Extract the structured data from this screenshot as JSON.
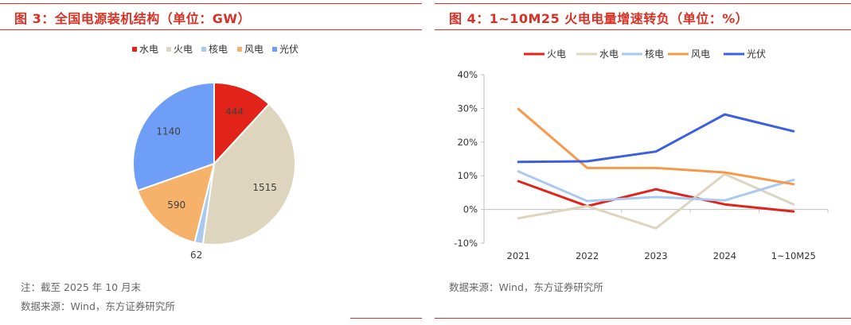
{
  "left": {
    "title": "图 3：全国电源装机结构（单位：GW）",
    "note": "注：截至 2025 年 10 月末",
    "source": "数据来源：Wind，东方证券研究所"
  },
  "right": {
    "title": "图 4：1~10M25 火电电量增速转负（单位：%）",
    "source": "数据来源：Wind，东方证券研究所"
  },
  "chart_data": [
    {
      "type": "pie",
      "labels": [
        "水电",
        "火电",
        "核电",
        "风电",
        "光伏"
      ],
      "values": [
        444,
        1515,
        62,
        590,
        1140
      ],
      "colors": [
        "#e2231a",
        "#ddd5be",
        "#a9c9ee",
        "#f6b26b",
        "#6f9ef7"
      ],
      "data_labels": [
        "444",
        "1515",
        "62",
        "590",
        "1140"
      ],
      "legend": "top"
    },
    {
      "type": "line",
      "categories": [
        "2021",
        "2022",
        "2023",
        "2024",
        "1~10M25"
      ],
      "series": [
        {
          "name": "火电",
          "color": "#e2231a",
          "values": [
            8.4,
            1.0,
            6.0,
            1.5,
            -0.6
          ]
        },
        {
          "name": "水电",
          "color": "#ddd5be",
          "values": [
            -2.6,
            1.0,
            -5.6,
            10.5,
            1.5
          ]
        },
        {
          "name": "核电",
          "color": "#a9c9ee",
          "values": [
            11.3,
            2.5,
            3.7,
            2.7,
            8.8
          ]
        },
        {
          "name": "风电",
          "color": "#f6994a",
          "values": [
            29.8,
            12.3,
            12.3,
            11.0,
            7.5
          ]
        },
        {
          "name": "光伏",
          "color": "#3b5fe0",
          "values": [
            14.1,
            14.3,
            17.2,
            28.2,
            23.2
          ]
        }
      ],
      "ylim": [
        -10,
        40
      ],
      "yticks": [
        "-10%",
        "0%",
        "10%",
        "20%",
        "30%",
        "40%"
      ],
      "legend": "top"
    }
  ]
}
